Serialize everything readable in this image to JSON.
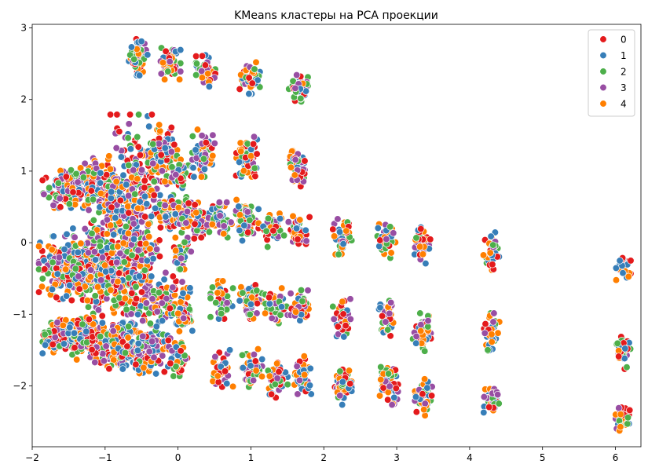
{
  "chart_data": {
    "type": "scatter",
    "title": "KMeans кластеры на PCA проекции",
    "xlabel": "",
    "ylabel": "",
    "xlim": [
      -2.0,
      6.35
    ],
    "ylim": [
      -2.85,
      3.05
    ],
    "x_ticks": [
      -2,
      -1,
      0,
      1,
      2,
      3,
      4,
      5,
      6
    ],
    "x_tick_labels": [
      "−2",
      "−1",
      "0",
      "1",
      "2",
      "3",
      "4",
      "5",
      "6"
    ],
    "y_ticks": [
      -2,
      -1,
      0,
      1,
      2,
      3
    ],
    "y_tick_labels": [
      "−2",
      "−1",
      "0",
      "1",
      "2",
      "3"
    ],
    "grid": false,
    "legend_position": "top-right",
    "series": [
      {
        "name": "0",
        "color": "#e41a1c"
      },
      {
        "name": "1",
        "color": "#377eb8"
      },
      {
        "name": "2",
        "color": "#4daf4a"
      },
      {
        "name": "3",
        "color": "#984ea3"
      },
      {
        "name": "4",
        "color": "#ff7f00"
      }
    ],
    "clusters": [
      {
        "x": -0.55,
        "y": 2.6,
        "sx": 0.06,
        "sy": 0.12,
        "n": 60
      },
      {
        "x": -0.12,
        "y": 2.5,
        "sx": 0.07,
        "sy": 0.1,
        "n": 60
      },
      {
        "x": 0.38,
        "y": 2.4,
        "sx": 0.06,
        "sy": 0.1,
        "n": 55
      },
      {
        "x": 1.0,
        "y": 2.3,
        "sx": 0.07,
        "sy": 0.1,
        "n": 55
      },
      {
        "x": 1.65,
        "y": 2.15,
        "sx": 0.06,
        "sy": 0.1,
        "n": 50
      },
      {
        "x": -1.55,
        "y": 0.75,
        "sx": 0.14,
        "sy": 0.12,
        "n": 120
      },
      {
        "x": -1.2,
        "y": 0.85,
        "sx": 0.14,
        "sy": 0.15,
        "n": 120
      },
      {
        "x": -0.9,
        "y": 0.55,
        "sx": 0.18,
        "sy": 0.3,
        "n": 150
      },
      {
        "x": -0.55,
        "y": 0.8,
        "sx": 0.18,
        "sy": 0.45,
        "n": 200
      },
      {
        "x": -0.2,
        "y": 1.25,
        "sx": 0.1,
        "sy": 0.18,
        "n": 80
      },
      {
        "x": 0.05,
        "y": 0.95,
        "sx": 0.06,
        "sy": 0.12,
        "n": 40
      },
      {
        "x": 0.35,
        "y": 1.25,
        "sx": 0.07,
        "sy": 0.15,
        "n": 60
      },
      {
        "x": 0.95,
        "y": 1.15,
        "sx": 0.07,
        "sy": 0.15,
        "n": 60
      },
      {
        "x": 1.65,
        "y": 1.05,
        "sx": 0.06,
        "sy": 0.12,
        "n": 55
      },
      {
        "x": -0.15,
        "y": 0.4,
        "sx": 0.12,
        "sy": 0.12,
        "n": 70
      },
      {
        "x": 0.1,
        "y": 0.35,
        "sx": 0.08,
        "sy": 0.12,
        "n": 50
      },
      {
        "x": 0.35,
        "y": 0.3,
        "sx": 0.08,
        "sy": 0.12,
        "n": 50
      },
      {
        "x": 0.6,
        "y": 0.3,
        "sx": 0.07,
        "sy": 0.12,
        "n": 45
      },
      {
        "x": 0.95,
        "y": 0.3,
        "sx": 0.07,
        "sy": 0.14,
        "n": 55
      },
      {
        "x": 1.3,
        "y": 0.2,
        "sx": 0.07,
        "sy": 0.12,
        "n": 50
      },
      {
        "x": 1.65,
        "y": 0.15,
        "sx": 0.07,
        "sy": 0.12,
        "n": 50
      },
      {
        "x": 2.25,
        "y": 0.1,
        "sx": 0.06,
        "sy": 0.12,
        "n": 45
      },
      {
        "x": 2.85,
        "y": 0.05,
        "sx": 0.06,
        "sy": 0.12,
        "n": 40
      },
      {
        "x": 3.35,
        "y": -0.05,
        "sx": 0.05,
        "sy": 0.12,
        "n": 40
      },
      {
        "x": 4.3,
        "y": -0.12,
        "sx": 0.05,
        "sy": 0.12,
        "n": 40
      },
      {
        "x": 6.1,
        "y": -0.35,
        "sx": 0.05,
        "sy": 0.1,
        "n": 30
      },
      {
        "x": -1.6,
        "y": -0.35,
        "sx": 0.14,
        "sy": 0.2,
        "n": 150
      },
      {
        "x": -1.25,
        "y": -0.35,
        "sx": 0.14,
        "sy": 0.25,
        "n": 150
      },
      {
        "x": -0.9,
        "y": -0.45,
        "sx": 0.15,
        "sy": 0.35,
        "n": 160
      },
      {
        "x": -0.5,
        "y": -0.4,
        "sx": 0.15,
        "sy": 0.4,
        "n": 170
      },
      {
        "x": 0.05,
        "y": -0.15,
        "sx": 0.06,
        "sy": 0.1,
        "n": 40
      },
      {
        "x": -0.1,
        "y": -0.8,
        "sx": 0.12,
        "sy": 0.15,
        "n": 60
      },
      {
        "x": 0.08,
        "y": -1.05,
        "sx": 0.06,
        "sy": 0.1,
        "n": 40
      },
      {
        "x": 0.6,
        "y": -0.8,
        "sx": 0.07,
        "sy": 0.12,
        "n": 50
      },
      {
        "x": 1.0,
        "y": -0.8,
        "sx": 0.07,
        "sy": 0.12,
        "n": 55
      },
      {
        "x": 1.35,
        "y": -0.9,
        "sx": 0.07,
        "sy": 0.12,
        "n": 50
      },
      {
        "x": 1.7,
        "y": -0.9,
        "sx": 0.07,
        "sy": 0.12,
        "n": 50
      },
      {
        "x": 2.25,
        "y": -1.05,
        "sx": 0.06,
        "sy": 0.12,
        "n": 45
      },
      {
        "x": 2.85,
        "y": -1.05,
        "sx": 0.06,
        "sy": 0.12,
        "n": 45
      },
      {
        "x": 3.35,
        "y": -1.25,
        "sx": 0.06,
        "sy": 0.12,
        "n": 45
      },
      {
        "x": 4.3,
        "y": -1.25,
        "sx": 0.05,
        "sy": 0.12,
        "n": 40
      },
      {
        "x": 6.1,
        "y": -1.5,
        "sx": 0.05,
        "sy": 0.12,
        "n": 40
      },
      {
        "x": -1.55,
        "y": -1.3,
        "sx": 0.14,
        "sy": 0.12,
        "n": 140
      },
      {
        "x": -1.2,
        "y": -1.35,
        "sx": 0.14,
        "sy": 0.15,
        "n": 140
      },
      {
        "x": -0.85,
        "y": -1.45,
        "sx": 0.15,
        "sy": 0.15,
        "n": 140
      },
      {
        "x": -0.45,
        "y": -1.5,
        "sx": 0.14,
        "sy": 0.15,
        "n": 130
      },
      {
        "x": 0.0,
        "y": -1.6,
        "sx": 0.07,
        "sy": 0.12,
        "n": 50
      },
      {
        "x": 0.6,
        "y": -1.75,
        "sx": 0.07,
        "sy": 0.12,
        "n": 50
      },
      {
        "x": 1.0,
        "y": -1.75,
        "sx": 0.07,
        "sy": 0.12,
        "n": 55
      },
      {
        "x": 1.35,
        "y": -1.9,
        "sx": 0.07,
        "sy": 0.12,
        "n": 50
      },
      {
        "x": 1.7,
        "y": -1.85,
        "sx": 0.07,
        "sy": 0.12,
        "n": 50
      },
      {
        "x": 2.25,
        "y": -2.0,
        "sx": 0.06,
        "sy": 0.12,
        "n": 45
      },
      {
        "x": 2.9,
        "y": -2.0,
        "sx": 0.06,
        "sy": 0.12,
        "n": 45
      },
      {
        "x": 3.38,
        "y": -2.15,
        "sx": 0.06,
        "sy": 0.12,
        "n": 45
      },
      {
        "x": 4.3,
        "y": -2.2,
        "sx": 0.05,
        "sy": 0.1,
        "n": 40
      },
      {
        "x": 6.1,
        "y": -2.45,
        "sx": 0.05,
        "sy": 0.08,
        "n": 40
      }
    ]
  }
}
